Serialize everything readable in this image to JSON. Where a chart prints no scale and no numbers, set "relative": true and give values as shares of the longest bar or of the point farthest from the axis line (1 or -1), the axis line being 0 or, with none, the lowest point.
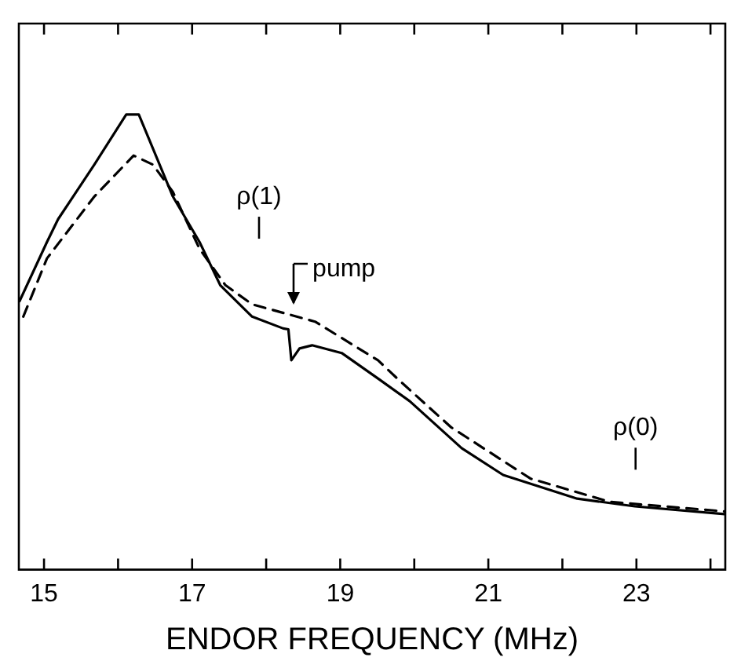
{
  "chart_data": {
    "type": "line",
    "xlabel": "ENDOR FREQUENCY (MHz)",
    "relative": true,
    "legend": false,
    "grid": false,
    "marker": "none",
    "xlim": [
      14.66,
      24.2
    ],
    "xticks": [
      15,
      {
        "value": 16,
        "label": null
      },
      17,
      {
        "value": 18,
        "label": null
      },
      19,
      {
        "value": 20,
        "label": null
      },
      21,
      {
        "value": 22,
        "label": null
      },
      23,
      {
        "value": 24,
        "label": null
      }
    ],
    "series": [
      {
        "color": "#000000",
        "line_style": "solid",
        "x": [
          14.67,
          15.04,
          15.19,
          15.68,
          16.11,
          16.28,
          16.74,
          17.1,
          17.38,
          17.81,
          18.23,
          18.3,
          18.34,
          18.45,
          18.62,
          19.02,
          19.51,
          19.94,
          20.64,
          21.2,
          22.2,
          22.98,
          24.19
        ],
        "values": [
          0.59,
          0.72,
          0.77,
          0.89,
          1.0,
          1.0,
          0.82,
          0.72,
          0.625,
          0.556,
          0.53,
          0.528,
          0.46,
          0.486,
          0.493,
          0.476,
          0.42,
          0.37,
          0.267,
          0.208,
          0.156,
          0.139,
          0.122
        ]
      },
      {
        "color": "#000000",
        "line_style": "dashed",
        "x": [
          14.72,
          15.04,
          15.68,
          16.21,
          16.47,
          16.74,
          17.1,
          17.45,
          17.81,
          18.66,
          19.51,
          19.79,
          20.5,
          21.57,
          22.64,
          24.19
        ],
        "values": [
          0.556,
          0.684,
          0.82,
          0.91,
          0.89,
          0.83,
          0.705,
          0.625,
          0.583,
          0.545,
          0.46,
          0.417,
          0.3125,
          0.2,
          0.149,
          0.128
        ]
      }
    ],
    "annotations": [
      "ρ(1)",
      "pump",
      "ρ(0)"
    ]
  }
}
